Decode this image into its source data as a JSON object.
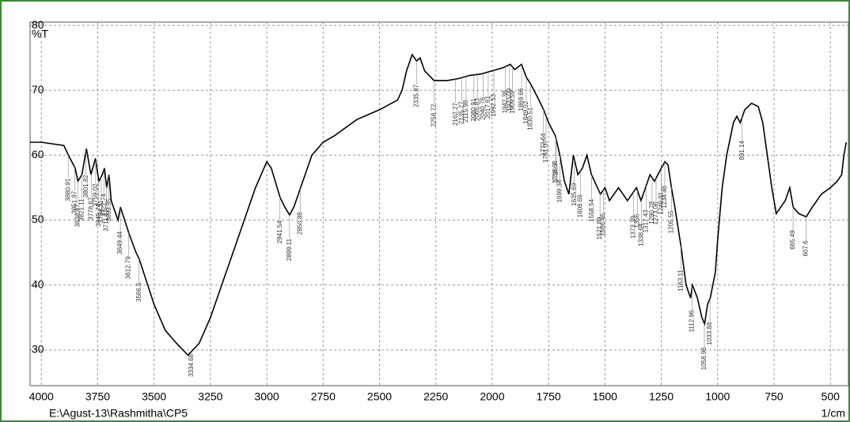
{
  "chart_data": {
    "type": "line",
    "ylabel": "%T",
    "xlabel": "1/cm",
    "footer": "E:\\Agust-13\\Rashmitha\\CP5",
    "xlim": [
      4050,
      420
    ],
    "ylim": [
      24.5,
      80.5
    ],
    "xticks": [
      4000,
      3750,
      3500,
      3250,
      3000,
      2750,
      2500,
      2250,
      2000,
      1750,
      1500,
      1250,
      1000,
      750,
      500
    ],
    "yticks": [
      30,
      40,
      50,
      60,
      70,
      80
    ],
    "grid": true,
    "series": [
      {
        "color": "#000000",
        "x": [
          4050,
          4000,
          3900,
          3880,
          3850,
          3838,
          3820,
          3800,
          3780,
          3760,
          3745,
          3730,
          3720,
          3710,
          3700,
          3690,
          3660,
          3649,
          3612,
          3580,
          3566,
          3500,
          3450,
          3400,
          3350,
          3300,
          3250,
          3200,
          3150,
          3100,
          3050,
          3000,
          2980,
          2941,
          2920,
          2899,
          2880,
          2850,
          2800,
          2750,
          2700,
          2600,
          2500,
          2420,
          2400,
          2380,
          2355,
          2335,
          2320,
          2300,
          2258,
          2200,
          2150,
          2100,
          2050,
          2000,
          1950,
          1920,
          1900,
          1870,
          1849,
          1830,
          1800,
          1772,
          1750,
          1720,
          1700,
          1680,
          1660,
          1640,
          1620,
          1600,
          1580,
          1560,
          1520,
          1500,
          1480,
          1460,
          1440,
          1420,
          1400,
          1380,
          1360,
          1340,
          1320,
          1300,
          1280,
          1250,
          1234,
          1220,
          1205,
          1190,
          1163,
          1140,
          1120,
          1112,
          1090,
          1070,
          1058,
          1045,
          1033,
          1010,
          1000,
          980,
          960,
          930,
          915,
          900,
          880,
          850,
          820,
          800,
          780,
          760,
          740,
          720,
          700,
          680,
          665,
          640,
          607,
          580,
          540,
          500,
          470,
          450,
          440,
          430
        ],
        "values": [
          62,
          62,
          61.5,
          60,
          58,
          56,
          57,
          61,
          57,
          59.5,
          56,
          57,
          58,
          55,
          57,
          53,
          50,
          52,
          48,
          45,
          44,
          37,
          33,
          31,
          29.2,
          31,
          35,
          40,
          45,
          50,
          55,
          59,
          58,
          53.5,
          52,
          50.8,
          52,
          55,
          60,
          62,
          63,
          65.5,
          67,
          68.5,
          70,
          73,
          75.5,
          74.5,
          75,
          73,
          71.5,
          71.5,
          71.8,
          72.3,
          72.5,
          73,
          73.5,
          74,
          73.2,
          74,
          72,
          71,
          69,
          67,
          65,
          63,
          60,
          56,
          54,
          60,
          57,
          58,
          60,
          57,
          54,
          55,
          53,
          54,
          55,
          54,
          53,
          54,
          55,
          53,
          55,
          57,
          56,
          58,
          59,
          58.5,
          55,
          52,
          46,
          40,
          38,
          40,
          38,
          35,
          34,
          37,
          38,
          42,
          47,
          55,
          60,
          65,
          66,
          65,
          67,
          68,
          67.5,
          65,
          60,
          55,
          51,
          52,
          53,
          55,
          52,
          51,
          50.5,
          52,
          54,
          55,
          56,
          57,
          60,
          62
        ]
      }
    ],
    "peaks": [
      3880.91,
      3851.97,
      3838.47,
      3821.11,
      3801.82,
      3778.67,
      3759.02,
      3745.74,
      3734.31,
      3722.74,
      3711.17,
      3699.95,
      3649.44,
      3612.79,
      3566.5,
      3334.68,
      2941.54,
      2899.11,
      2850.88,
      2335.87,
      2258.72,
      2162.27,
      2135.27,
      2115.98,
      2080.91,
      2065.83,
      2040.76,
      2017.61,
      1992.53,
      1942.38,
      1923.09,
      1909.59,
      1869.66,
      1849.02,
      1830.51,
      1772.64,
      1761.07,
      1718.68,
      1716.7,
      1699.34,
      1635.69,
      1608.69,
      1558.54,
      1521.89,
      1506.46,
      1373.39,
      1356.0,
      1338.64,
      1317.43,
      1290.78,
      1273.06,
      1249.91,
      1234.48,
      1205.55,
      1163.11,
      1112.96,
      1058.96,
      1033.88,
      891.14,
      665.49,
      607.6
    ]
  }
}
